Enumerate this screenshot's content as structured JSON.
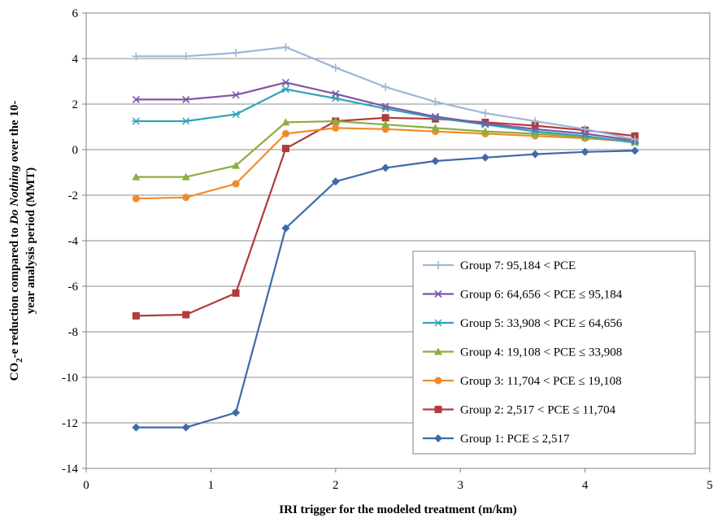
{
  "chart_data": {
    "type": "line",
    "title": "",
    "xlabel": "IRI trigger for the modeled treatment (m/km)",
    "ylabel": {
      "line1_prefix": "CO",
      "line1_sub": "2",
      "line1_mid": "-e reduction compared to ",
      "line1_em": "Do Nothing",
      "line1_suffix": " over the 10-",
      "line2": "year analysis period (MMT)"
    },
    "xlim": [
      0,
      5
    ],
    "ylim": [
      -14,
      6
    ],
    "xticks": [
      0,
      1,
      2,
      3,
      4,
      5
    ],
    "yticks": [
      -14,
      -12,
      -10,
      -8,
      -6,
      -4,
      -2,
      0,
      2,
      4,
      6
    ],
    "grid": "horizontal",
    "legend_position": "lower-right",
    "x": [
      0.4,
      0.8,
      1.2,
      1.6,
      2.0,
      2.4,
      2.8,
      3.2,
      3.6,
      4.0,
      4.4
    ],
    "series": [
      {
        "name": "Group 7: 95,184 < PCE",
        "color": "#9fb5d9",
        "marker": "plus",
        "values": [
          4.1,
          4.1,
          4.25,
          4.5,
          3.6,
          2.75,
          2.1,
          1.6,
          1.25,
          0.9,
          0.45
        ]
      },
      {
        "name": "Group 6: 64,656 < PCE ≤ 95,184",
        "color": "#7e57a4",
        "marker": "x",
        "values": [
          2.2,
          2.2,
          2.4,
          2.95,
          2.45,
          1.9,
          1.45,
          1.15,
          0.9,
          0.7,
          0.4
        ]
      },
      {
        "name": "Group 5: 33,908 < PCE ≤ 64,656",
        "color": "#2fa3b8",
        "marker": "asterisk",
        "values": [
          1.25,
          1.25,
          1.55,
          2.65,
          2.25,
          1.8,
          1.4,
          1.1,
          0.8,
          0.6,
          0.3
        ]
      },
      {
        "name": "Group 4: 19,108 < PCE ≤ 33,908",
        "color": "#8cae3e",
        "marker": "triangle",
        "values": [
          -1.2,
          -1.2,
          -0.7,
          1.2,
          1.25,
          1.1,
          0.95,
          0.8,
          0.7,
          0.55,
          0.35
        ]
      },
      {
        "name": "Group 3: 11,704 < PCE ≤ 19,108",
        "color": "#f08b2b",
        "marker": "circle",
        "values": [
          -2.15,
          -2.1,
          -1.5,
          0.7,
          0.95,
          0.9,
          0.8,
          0.7,
          0.6,
          0.5,
          0.35
        ]
      },
      {
        "name": "Group 2: 2,517 < PCE ≤ 11,704",
        "color": "#b23b3b",
        "marker": "square",
        "values": [
          -7.3,
          -7.25,
          -6.3,
          0.05,
          1.25,
          1.4,
          1.35,
          1.2,
          1.05,
          0.85,
          0.6
        ]
      },
      {
        "name": "Group 1: PCE ≤ 2,517",
        "color": "#3e6aa8",
        "marker": "diamond",
        "values": [
          -12.2,
          -12.2,
          -11.55,
          -3.45,
          -1.4,
          -0.8,
          -0.5,
          -0.35,
          -0.2,
          -0.1,
          -0.05
        ]
      }
    ]
  }
}
